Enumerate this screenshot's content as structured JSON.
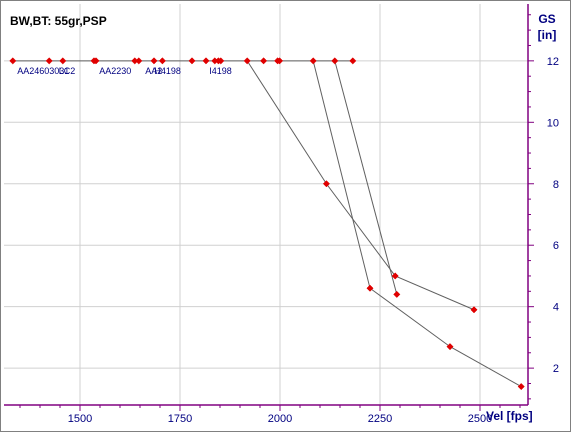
{
  "chart_data": {
    "type": "scatter",
    "title": "BW,BT: 55gr,PSP",
    "xlabel": "Vel [fps]",
    "ylabel_line1": "GS",
    "ylabel_line2": "[in]",
    "xlim": [
      1310,
      2620
    ],
    "ylim": [
      0.8,
      13.85
    ],
    "x_ticks": [
      1500,
      1750,
      2000,
      2250,
      2500
    ],
    "y_ticks": [
      2,
      4,
      6,
      8,
      10,
      12
    ],
    "grid": true,
    "colors": {
      "axis": "#800080",
      "grid": "#d0d0d0",
      "line": "#606060",
      "point": "#e00000",
      "text": "#000080"
    },
    "baseline_points": {
      "y": 12,
      "x": [
        1332,
        1423,
        1457,
        1535,
        1540,
        1637,
        1647,
        1685,
        1706,
        1780,
        1815,
        1837,
        1846,
        1852,
        1918,
        1959,
        1994,
        1999,
        2083,
        2137,
        2182
      ]
    },
    "annotations": [
      {
        "text": "AA2460",
        "x": 1343,
        "y": 12
      },
      {
        "text": "3031",
        "x": 1423,
        "y": 12
      },
      {
        "text": "LC2",
        "x": 1447,
        "y": 12
      },
      {
        "text": "AA2230",
        "x": 1548,
        "y": 12
      },
      {
        "text": "AA2",
        "x": 1663,
        "y": 12
      },
      {
        "text": "H4198",
        "x": 1686,
        "y": 12
      },
      {
        "text": "I4198",
        "x": 1823,
        "y": 12
      }
    ],
    "series": [
      {
        "points": [
          [
            1918,
            12
          ],
          [
            2116,
            8
          ],
          [
            2288,
            5
          ],
          [
            2485,
            3.9
          ]
        ]
      },
      {
        "points": [
          [
            2083,
            12
          ],
          [
            2225,
            4.6
          ],
          [
            2425,
            2.7
          ],
          [
            2603,
            1.4
          ]
        ]
      },
      {
        "points": [
          [
            2137,
            12
          ],
          [
            2292,
            4.4
          ]
        ]
      }
    ]
  }
}
